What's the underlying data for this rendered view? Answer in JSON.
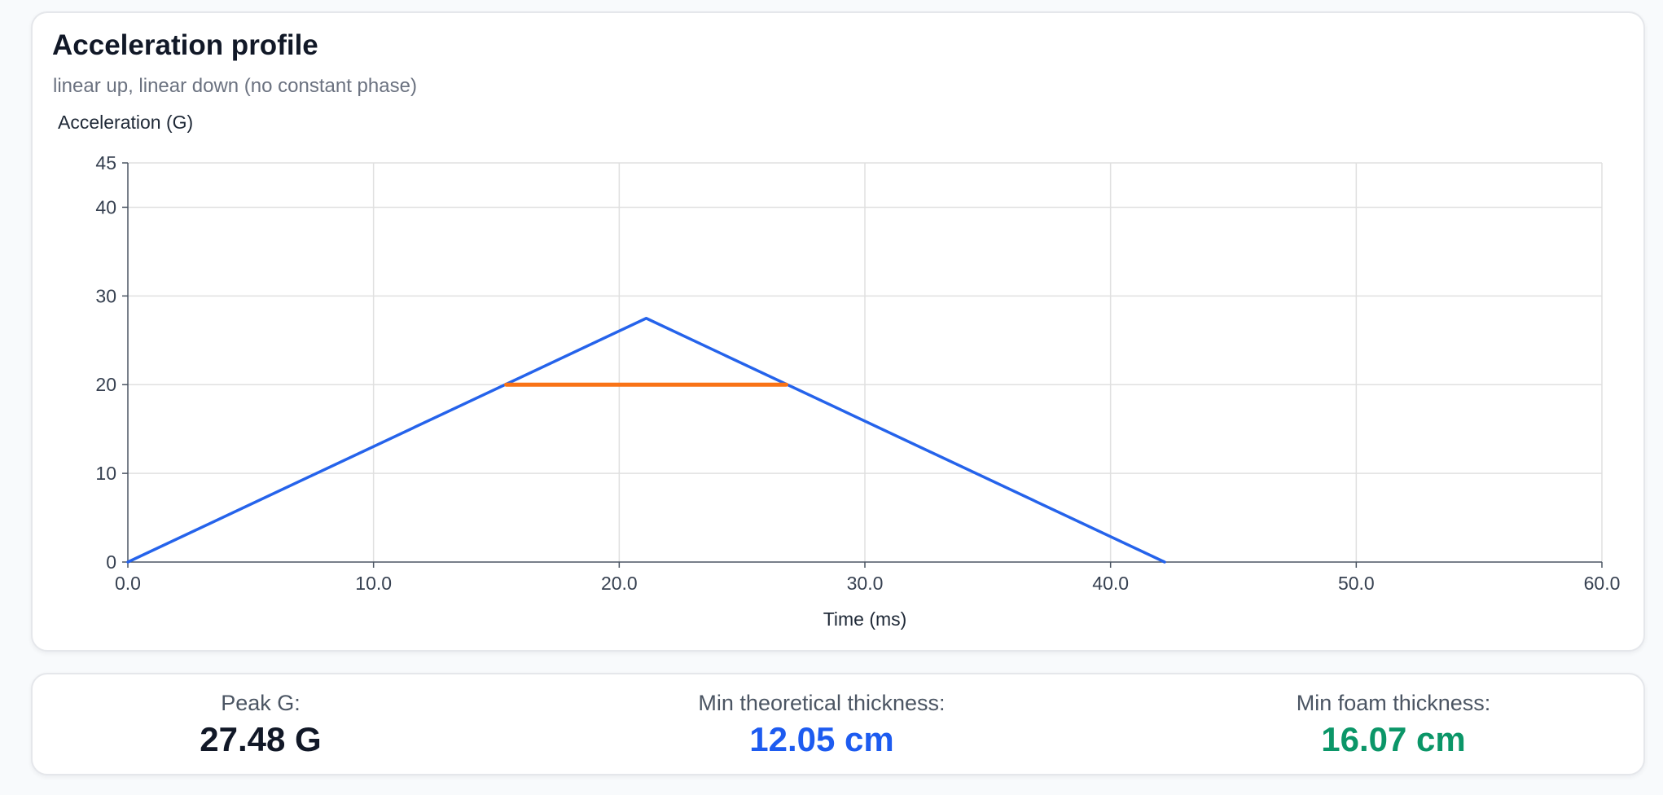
{
  "header": {
    "title": "Acceleration profile",
    "subtitle": "linear up, linear down (no constant phase)"
  },
  "colors": {
    "profile_line": "#2563eb",
    "threshold_line": "#f97316",
    "peak_value": "#111827",
    "theoretical_value": "#1d5bf0",
    "foam_value": "#0b9668"
  },
  "chart_data": {
    "type": "line",
    "title": "",
    "xlabel": "Time (ms)",
    "ylabel": "Acceleration (G)",
    "xlim": [
      0,
      60
    ],
    "ylim": [
      0,
      45
    ],
    "x_ticks": [
      0,
      10,
      20,
      30,
      40,
      50,
      60
    ],
    "x_tick_labels": [
      "0.0",
      "10.0",
      "20.0",
      "30.0",
      "40.0",
      "50.0",
      "60.0"
    ],
    "y_ticks": [
      0,
      10,
      20,
      30,
      40,
      45
    ],
    "y_tick_labels": [
      "0",
      "10",
      "20",
      "30",
      "40",
      "45"
    ],
    "grid": true,
    "series": [
      {
        "color": "#2563eb",
        "x": [
          0,
          21.1,
          42.2
        ],
        "y": [
          0,
          27.48,
          0
        ]
      },
      {
        "color": "#f97316",
        "x": [
          15.4,
          26.8
        ],
        "y": [
          20,
          20
        ]
      }
    ]
  },
  "stats": [
    {
      "label": "Peak G:",
      "value": "27.48 G"
    },
    {
      "label": "Min theoretical thickness:",
      "value": "12.05 cm"
    },
    {
      "label": "Min foam thickness:",
      "value": "16.07 cm"
    }
  ]
}
